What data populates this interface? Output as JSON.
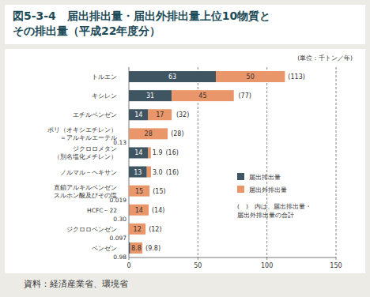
{
  "chart_data": {
    "type": "bar",
    "orientation": "horizontal",
    "stacked": true,
    "data_labels": true,
    "grid": true,
    "title": "図5-3-4　届出排出量・届出外排出量上位10物質と\nその排出量（平成22年度分）",
    "subtitle": "(単位：千トン／年)",
    "source": "資料：経済産業省、環境省",
    "note": "(　)　内は、届出排出量・\n届出外排出量の合計",
    "legend": "right",
    "categories": [
      "トルエン",
      "キシレン",
      "エチルベンゼン",
      "ポリ（オキシエチレン）\n＝アルキルエーテル",
      "ジクロロメタン\n（別名塩化メチレン）",
      "ノルマル－ヘキサン",
      "直鎖アルキルベンゼン\nスルホン酸及びその塩",
      "HCFC－22",
      "ジクロロベンゼン",
      "ベンゼン"
    ],
    "series": [
      {
        "name": "届出排出量",
        "color": "#3f5562",
        "values": [
          63,
          31,
          14,
          0.13,
          14,
          13,
          0.019,
          0.3,
          0.097,
          0.98
        ],
        "value_labels": [
          "63",
          "31",
          "14",
          "0.13",
          "14",
          "13",
          "0.019",
          "0.30",
          "0.097",
          "0.98"
        ]
      },
      {
        "name": "届出外排出量",
        "color": "#e8966a",
        "values": [
          50,
          45,
          17,
          28,
          1.9,
          3.0,
          15,
          14,
          12,
          8.8
        ],
        "value_labels": [
          "50",
          "45",
          "17",
          "28",
          "1.9",
          "3.0",
          "15",
          "14",
          "12",
          "8.8"
        ]
      }
    ],
    "totals": [
      113,
      77,
      32,
      28,
      16,
      16,
      15,
      14,
      12,
      9.8
    ],
    "total_labels": [
      "(113)",
      "(77)",
      "(32)",
      "(28)",
      "(16)",
      "(16)",
      "(15)",
      "(14)",
      "(12)",
      "(9.8)"
    ],
    "xlim": [
      0,
      150
    ],
    "xticks": [
      0,
      50,
      100,
      150
    ]
  }
}
